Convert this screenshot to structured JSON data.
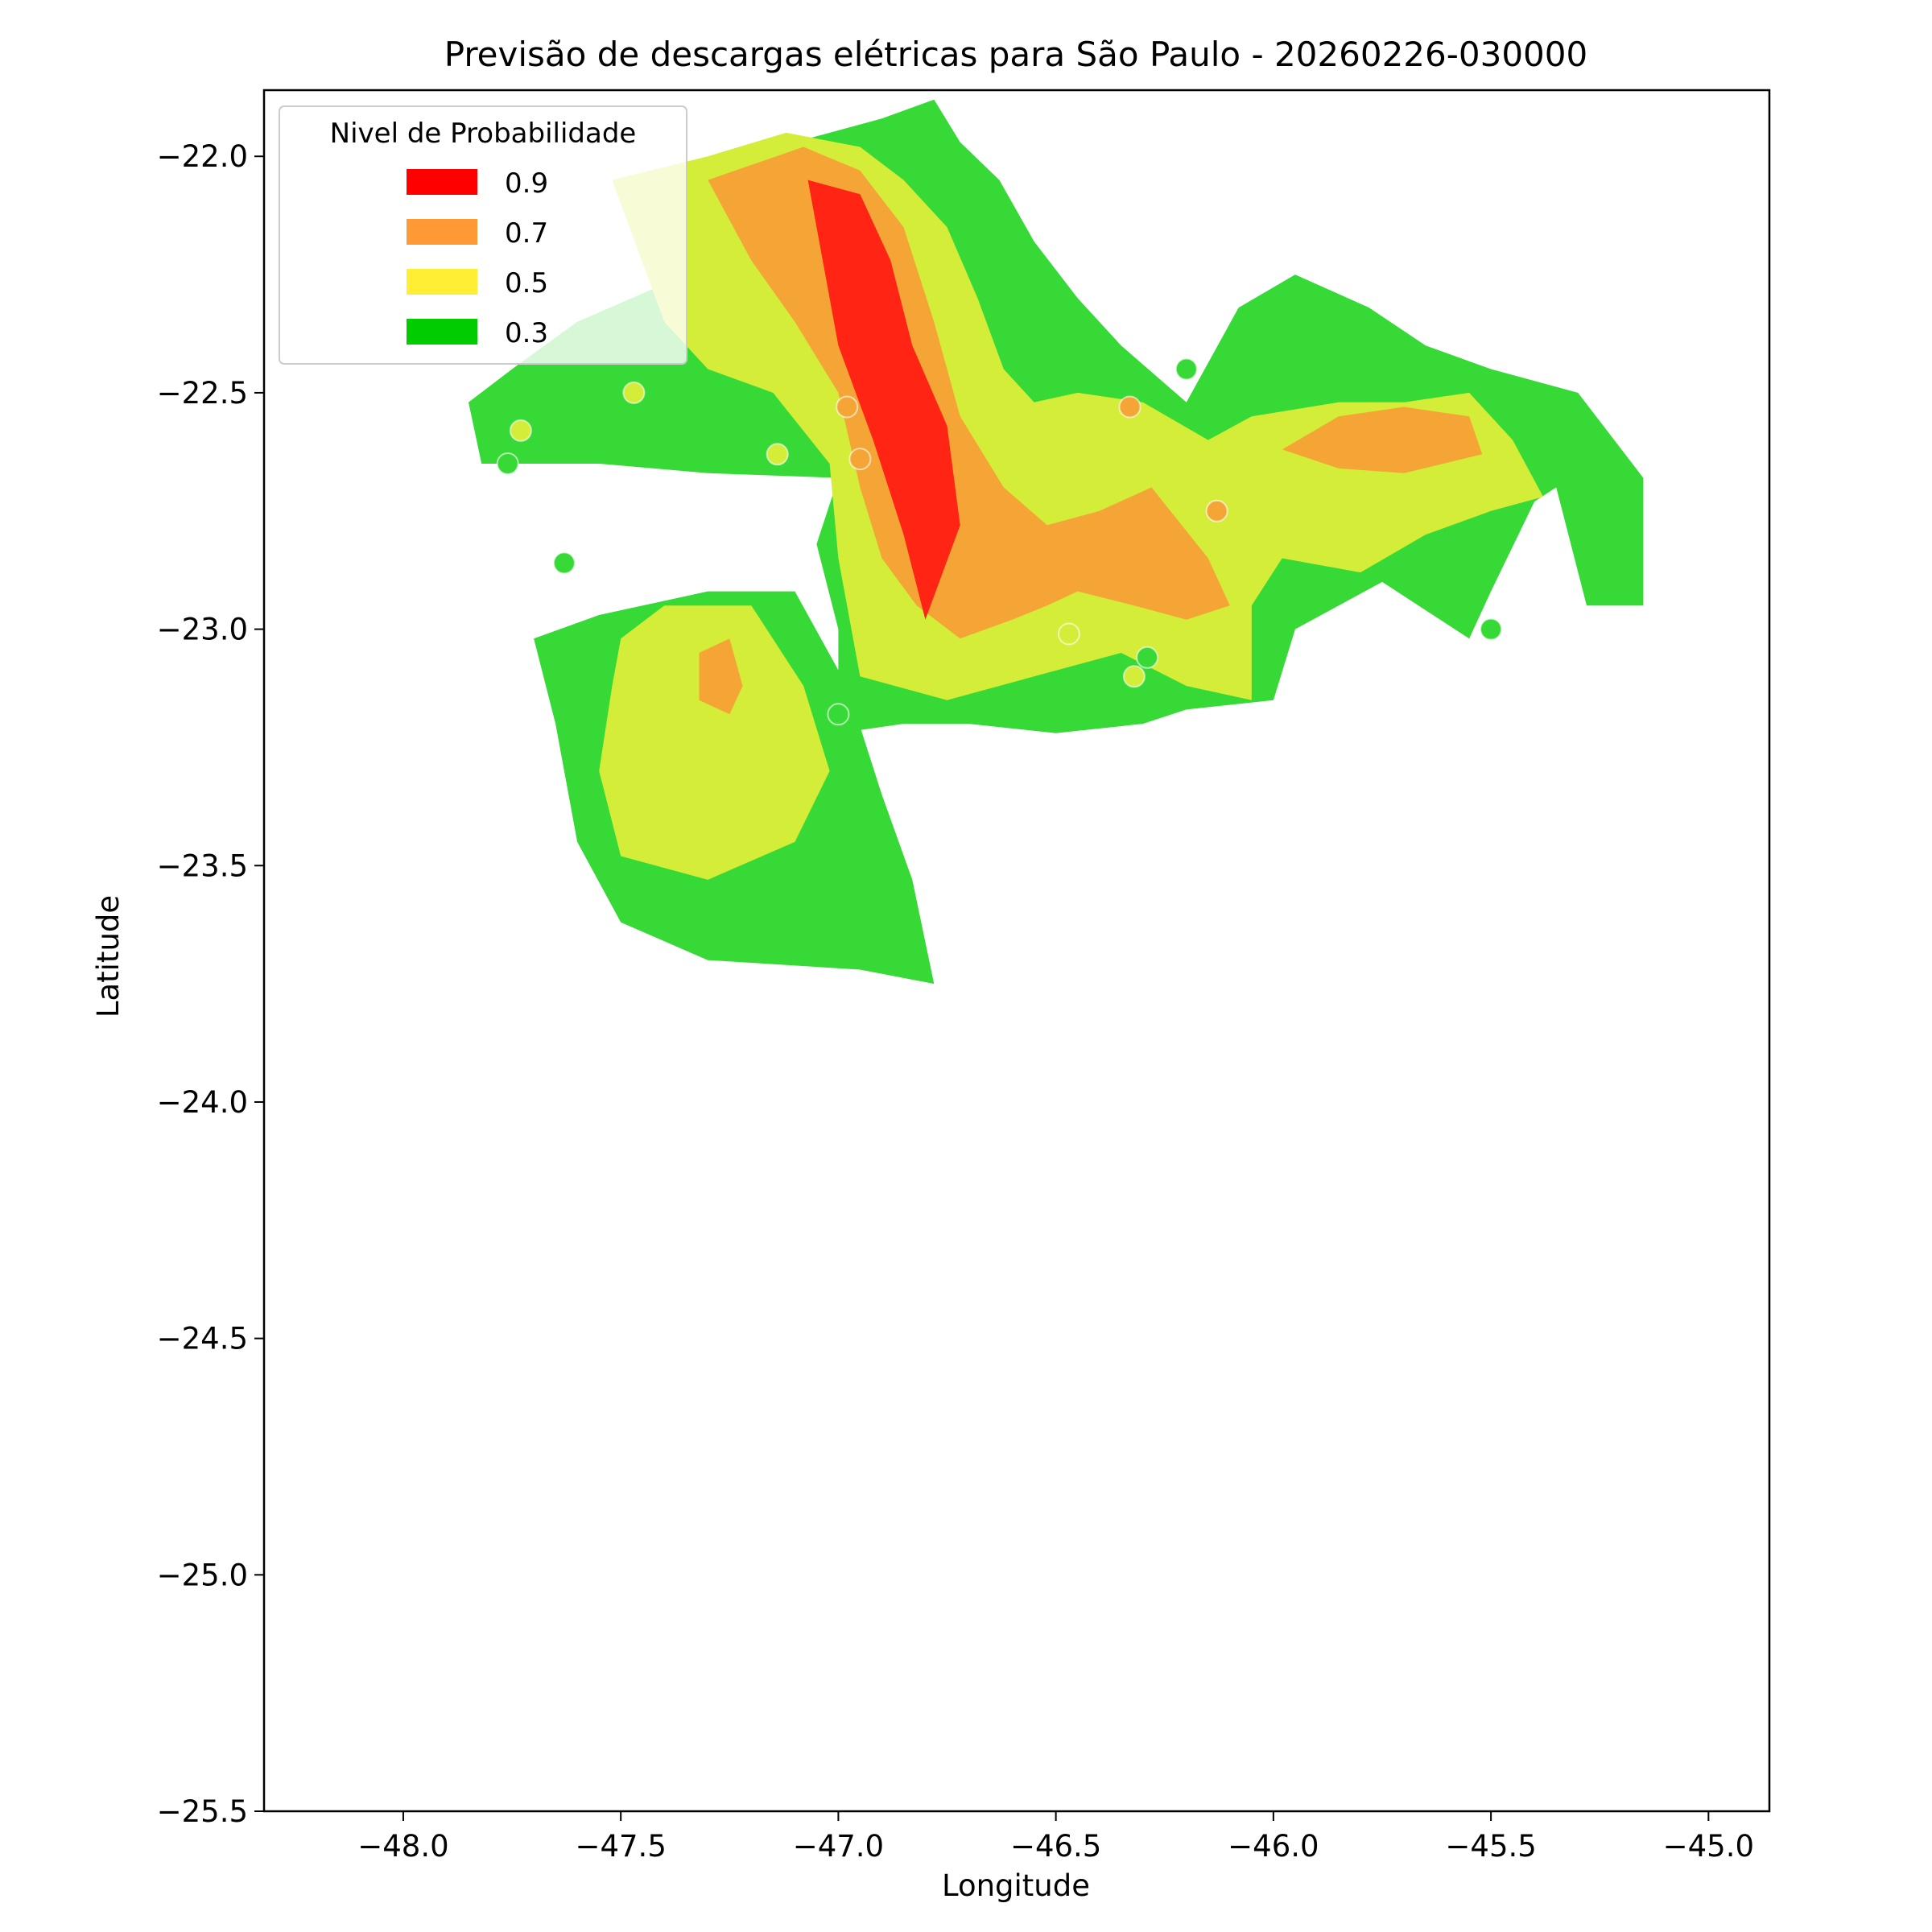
{
  "chart_data": {
    "type": "heatmap",
    "title": "Previsão de descargas elétricas para São Paulo - 20260226-030000",
    "xlabel": "Longitude",
    "ylabel": "Latitude",
    "xlim": [
      -48.32,
      -44.86
    ],
    "ylim": [
      -25.5,
      -21.86
    ],
    "xticks": [
      -48.0,
      -47.5,
      -47.0,
      -46.5,
      -46.0,
      -45.5,
      -45.0
    ],
    "xtick_labels": [
      "−48.0",
      "−47.5",
      "−47.0",
      "−46.5",
      "−46.0",
      "−45.5",
      "−45.0"
    ],
    "yticks": [
      -22.0,
      -22.5,
      -23.0,
      -23.5,
      -24.0,
      -24.5,
      -25.0,
      -25.5
    ],
    "ytick_labels": [
      "−22.0",
      "−22.5",
      "−23.0",
      "−23.5",
      "−24.0",
      "−24.5",
      "−25.0",
      "−25.5"
    ],
    "grid": false,
    "legend": {
      "title": "Nivel de Probabilidade",
      "placement": "top-left",
      "entries": [
        {
          "label": "0.9",
          "color": "#ff0000"
        },
        {
          "label": "0.7",
          "color": "#ff9933"
        },
        {
          "label": "0.5",
          "color": "#ffee33"
        },
        {
          "label": "0.3",
          "color": "#00cc00"
        }
      ]
    },
    "fill_colors": {
      "0.3": "#36d936",
      "0.5": "#d4ed38",
      "0.7": "#f5a536",
      "0.9": "#ff2414"
    },
    "levels": [
      {
        "level": "0.3",
        "regions": [
          [
            [
              -47.6,
              -22.35
            ],
            [
              -47.35,
              -22.25
            ],
            [
              -47.15,
              -22.15
            ],
            [
              -47.1,
              -21.97
            ],
            [
              -46.9,
              -21.92
            ],
            [
              -46.78,
              -21.88
            ],
            [
              -46.72,
              -21.97
            ],
            [
              -46.63,
              -22.05
            ],
            [
              -46.55,
              -22.18
            ],
            [
              -46.45,
              -22.3
            ],
            [
              -46.35,
              -22.4
            ],
            [
              -46.2,
              -22.52
            ],
            [
              -46.08,
              -22.32
            ],
            [
              -45.95,
              -22.25
            ],
            [
              -45.78,
              -22.32
            ],
            [
              -45.65,
              -22.4
            ],
            [
              -45.5,
              -22.45
            ],
            [
              -45.3,
              -22.5
            ],
            [
              -45.15,
              -22.68
            ],
            [
              -45.15,
              -22.95
            ],
            [
              -45.28,
              -22.95
            ],
            [
              -45.35,
              -22.7
            ],
            [
              -45.4,
              -22.73
            ],
            [
              -45.5,
              -22.92
            ],
            [
              -45.55,
              -23.02
            ],
            [
              -45.75,
              -22.9
            ],
            [
              -45.95,
              -23.0
            ],
            [
              -46.0,
              -23.15
            ],
            [
              -46.2,
              -23.17
            ],
            [
              -46.3,
              -23.2
            ],
            [
              -46.5,
              -23.22
            ],
            [
              -46.7,
              -23.2
            ],
            [
              -46.85,
              -23.2
            ],
            [
              -47.0,
              -23.22
            ],
            [
              -47.0,
              -23.0
            ],
            [
              -47.05,
              -22.82
            ],
            [
              -47.0,
              -22.68
            ],
            [
              -47.3,
              -22.67
            ],
            [
              -47.55,
              -22.65
            ],
            [
              -47.82,
              -22.65
            ],
            [
              -47.85,
              -22.52
            ],
            [
              -47.75,
              -22.45
            ],
            [
              -47.6,
              -22.35
            ]
          ],
          [
            [
              -47.7,
              -23.02
            ],
            [
              -47.55,
              -22.97
            ],
            [
              -47.3,
              -22.92
            ],
            [
              -47.1,
              -22.92
            ],
            [
              -46.98,
              -23.12
            ],
            [
              -46.9,
              -23.35
            ],
            [
              -46.83,
              -23.53
            ],
            [
              -46.78,
              -23.75
            ],
            [
              -46.95,
              -23.72
            ],
            [
              -47.3,
              -23.7
            ],
            [
              -47.5,
              -23.62
            ],
            [
              -47.6,
              -23.45
            ],
            [
              -47.65,
              -23.2
            ],
            [
              -47.7,
              -23.02
            ]
          ]
        ]
      },
      {
        "level": "0.5",
        "regions": [
          [
            [
              -47.52,
              -22.05
            ],
            [
              -47.3,
              -22.0
            ],
            [
              -47.12,
              -21.95
            ],
            [
              -46.95,
              -21.98
            ],
            [
              -46.85,
              -22.05
            ],
            [
              -46.75,
              -22.15
            ],
            [
              -46.68,
              -22.3
            ],
            [
              -46.62,
              -22.45
            ],
            [
              -46.55,
              -22.52
            ],
            [
              -46.45,
              -22.5
            ],
            [
              -46.3,
              -22.52
            ],
            [
              -46.15,
              -22.6
            ],
            [
              -46.05,
              -22.55
            ],
            [
              -45.85,
              -22.52
            ],
            [
              -45.7,
              -22.52
            ],
            [
              -45.55,
              -22.5
            ],
            [
              -45.45,
              -22.6
            ],
            [
              -45.38,
              -22.72
            ],
            [
              -45.5,
              -22.75
            ],
            [
              -45.65,
              -22.8
            ],
            [
              -45.8,
              -22.88
            ],
            [
              -45.98,
              -22.85
            ],
            [
              -46.05,
              -22.95
            ],
            [
              -46.05,
              -23.15
            ],
            [
              -46.2,
              -23.12
            ],
            [
              -46.35,
              -23.05
            ],
            [
              -46.55,
              -23.1
            ],
            [
              -46.75,
              -23.15
            ],
            [
              -46.95,
              -23.1
            ],
            [
              -47.0,
              -22.85
            ],
            [
              -47.02,
              -22.65
            ],
            [
              -47.15,
              -22.5
            ],
            [
              -47.3,
              -22.45
            ],
            [
              -47.4,
              -22.35
            ],
            [
              -47.52,
              -22.05
            ]
          ],
          [
            [
              -47.5,
              -23.02
            ],
            [
              -47.4,
              -22.95
            ],
            [
              -47.2,
              -22.95
            ],
            [
              -47.08,
              -23.12
            ],
            [
              -47.02,
              -23.3
            ],
            [
              -47.1,
              -23.45
            ],
            [
              -47.3,
              -23.53
            ],
            [
              -47.5,
              -23.48
            ],
            [
              -47.55,
              -23.3
            ],
            [
              -47.52,
              -23.12
            ],
            [
              -47.5,
              -23.02
            ]
          ]
        ]
      },
      {
        "level": "0.7",
        "regions": [
          [
            [
              -47.3,
              -22.05
            ],
            [
              -47.08,
              -21.98
            ],
            [
              -46.95,
              -22.03
            ],
            [
              -46.85,
              -22.15
            ],
            [
              -46.78,
              -22.35
            ],
            [
              -46.72,
              -22.55
            ],
            [
              -46.62,
              -22.7
            ],
            [
              -46.52,
              -22.78
            ],
            [
              -46.4,
              -22.75
            ],
            [
              -46.28,
              -22.7
            ],
            [
              -46.15,
              -22.85
            ],
            [
              -46.1,
              -22.95
            ],
            [
              -46.2,
              -22.98
            ],
            [
              -46.32,
              -22.95
            ],
            [
              -46.45,
              -22.92
            ],
            [
              -46.52,
              -22.95
            ],
            [
              -46.6,
              -22.98
            ],
            [
              -46.72,
              -23.02
            ],
            [
              -46.82,
              -22.95
            ],
            [
              -46.9,
              -22.85
            ],
            [
              -46.95,
              -22.7
            ],
            [
              -47.0,
              -22.5
            ],
            [
              -47.1,
              -22.35
            ],
            [
              -47.2,
              -22.22
            ],
            [
              -47.3,
              -22.05
            ]
          ],
          [
            [
              -45.98,
              -22.62
            ],
            [
              -45.85,
              -22.55
            ],
            [
              -45.7,
              -22.53
            ],
            [
              -45.55,
              -22.55
            ],
            [
              -45.52,
              -22.63
            ],
            [
              -45.7,
              -22.67
            ],
            [
              -45.85,
              -22.66
            ],
            [
              -45.98,
              -22.62
            ]
          ],
          [
            [
              -47.32,
              -23.05
            ],
            [
              -47.25,
              -23.02
            ],
            [
              -47.22,
              -23.12
            ],
            [
              -47.25,
              -23.18
            ],
            [
              -47.32,
              -23.15
            ],
            [
              -47.32,
              -23.05
            ]
          ]
        ]
      },
      {
        "level": "0.9",
        "regions": [
          [
            [
              -47.07,
              -22.05
            ],
            [
              -46.95,
              -22.08
            ],
            [
              -46.88,
              -22.22
            ],
            [
              -46.83,
              -22.4
            ],
            [
              -46.75,
              -22.57
            ],
            [
              -46.72,
              -22.78
            ],
            [
              -46.8,
              -22.98
            ],
            [
              -46.85,
              -22.8
            ],
            [
              -46.92,
              -22.6
            ],
            [
              -47.0,
              -22.4
            ],
            [
              -47.07,
              -22.05
            ]
          ]
        ]
      }
    ],
    "markers": [
      {
        "lon": -47.73,
        "lat": -22.58,
        "level": "0.5"
      },
      {
        "lon": -47.47,
        "lat": -22.5,
        "level": "0.5"
      },
      {
        "lon": -47.14,
        "lat": -22.63,
        "level": "0.5"
      },
      {
        "lon": -47.76,
        "lat": -22.65,
        "level": "0.3"
      },
      {
        "lon": -47.63,
        "lat": -22.86,
        "level": "0.3"
      },
      {
        "lon": -46.98,
        "lat": -22.53,
        "level": "0.7"
      },
      {
        "lon": -46.95,
        "lat": -22.64,
        "level": "0.7"
      },
      {
        "lon": -46.33,
        "lat": -22.53,
        "level": "0.7"
      },
      {
        "lon": -46.2,
        "lat": -22.45,
        "level": "0.3"
      },
      {
        "lon": -46.13,
        "lat": -22.75,
        "level": "0.7"
      },
      {
        "lon": -46.47,
        "lat": -23.01,
        "level": "0.5"
      },
      {
        "lon": -46.32,
        "lat": -23.1,
        "level": "0.5"
      },
      {
        "lon": -46.29,
        "lat": -23.06,
        "level": "0.3"
      },
      {
        "lon": -47.0,
        "lat": -23.18,
        "level": "0.3"
      },
      {
        "lon": -45.5,
        "lat": -23.0,
        "level": "0.3"
      }
    ]
  }
}
